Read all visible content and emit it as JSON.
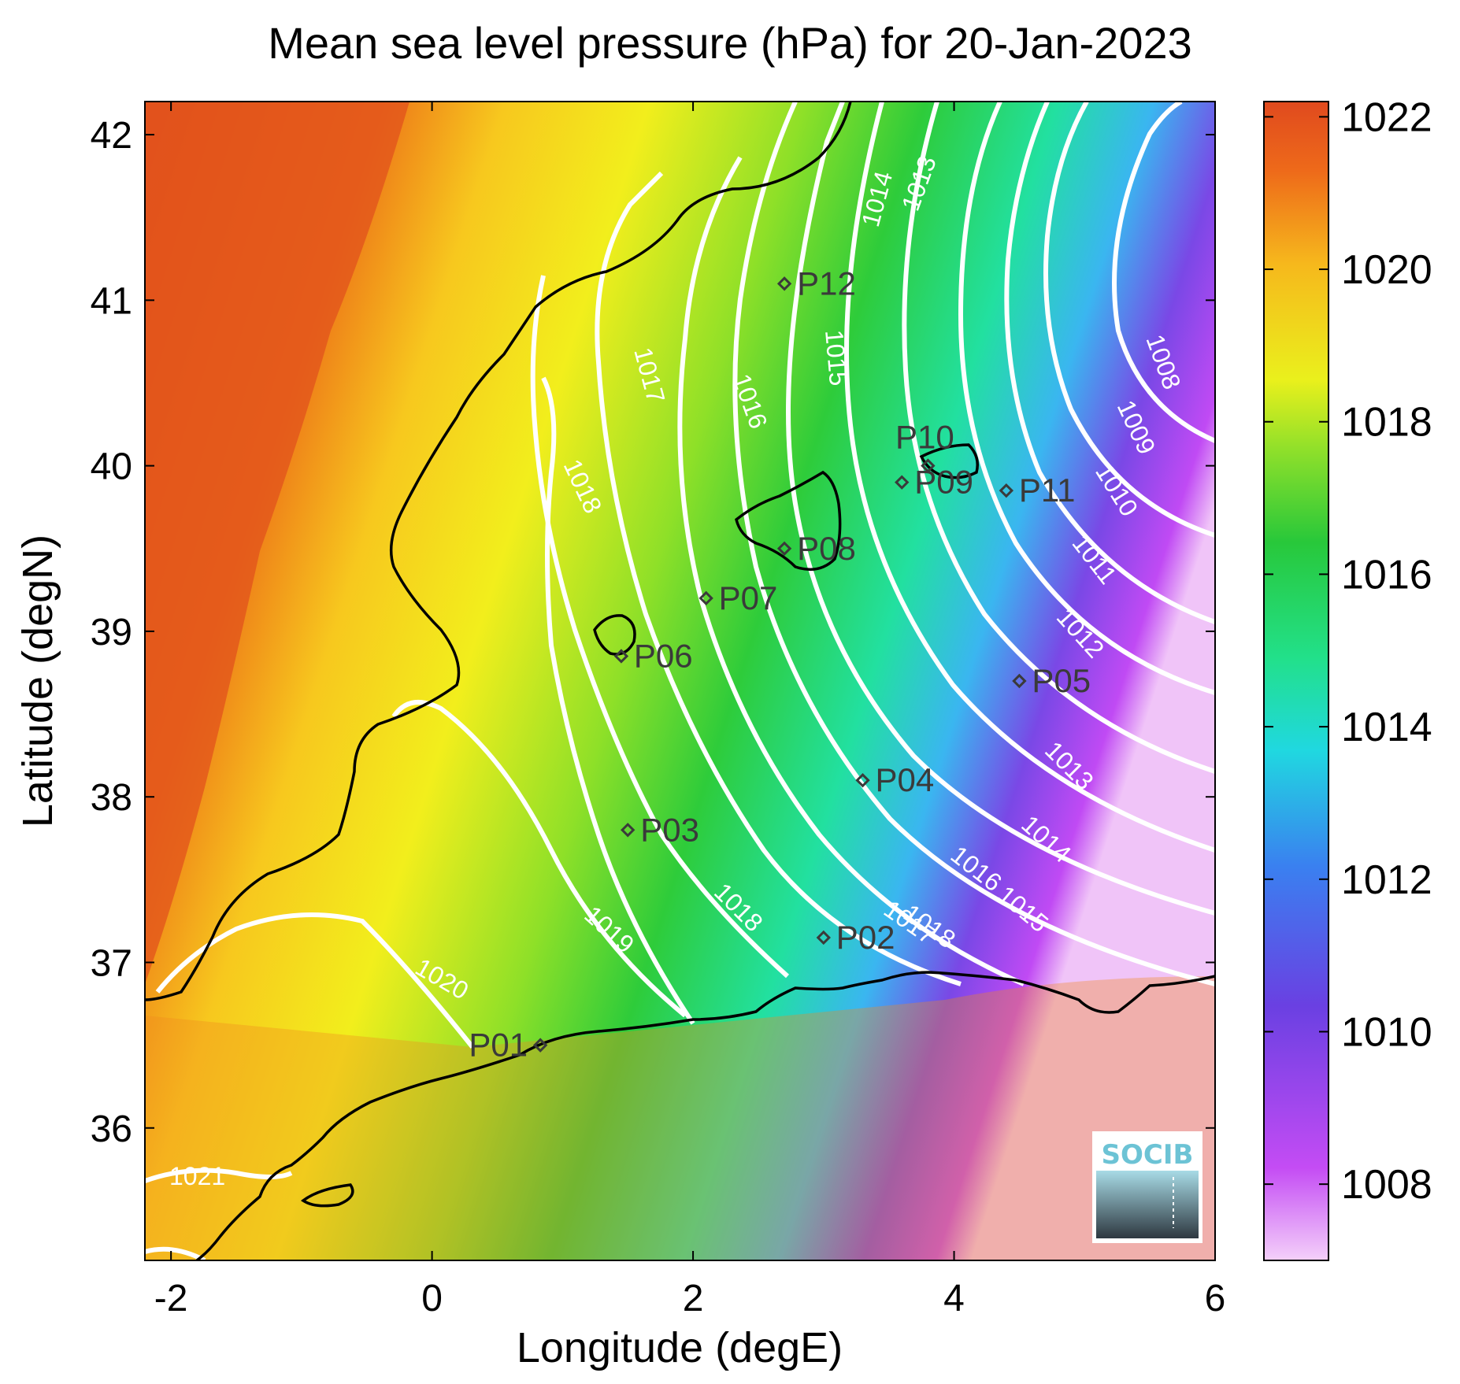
{
  "title": "Mean sea level pressure (hPa) for 20-Jan-2023",
  "axes": {
    "xlabel": "Longitude (degE)",
    "ylabel": "Latitude (degN)",
    "xlim": [
      -2.2,
      6
    ],
    "ylim": [
      35.2,
      42.2
    ],
    "xticks": [
      "-2",
      "0",
      "2",
      "4",
      "6"
    ],
    "yticks": [
      "36",
      "37",
      "38",
      "39",
      "40",
      "41",
      "42"
    ]
  },
  "colorbar": {
    "range": [
      1007,
      1022.2
    ],
    "ticks": [
      "1022",
      "1020",
      "1018",
      "1016",
      "1014",
      "1012",
      "1010",
      "1008"
    ]
  },
  "stations": [
    {
      "id": "P01",
      "lon": 0.83,
      "lat": 36.5
    },
    {
      "id": "P02",
      "lon": 3.0,
      "lat": 37.15
    },
    {
      "id": "P03",
      "lon": 1.5,
      "lat": 37.8
    },
    {
      "id": "P04",
      "lon": 3.3,
      "lat": 38.1
    },
    {
      "id": "P05",
      "lon": 4.5,
      "lat": 38.7
    },
    {
      "id": "P06",
      "lon": 1.45,
      "lat": 38.85
    },
    {
      "id": "P07",
      "lon": 2.1,
      "lat": 39.2
    },
    {
      "id": "P08",
      "lon": 2.7,
      "lat": 39.5
    },
    {
      "id": "P09",
      "lon": 3.6,
      "lat": 39.9
    },
    {
      "id": "P10",
      "lon": 3.8,
      "lat": 40.0
    },
    {
      "id": "P11",
      "lon": 4.4,
      "lat": 39.85
    },
    {
      "id": "P12",
      "lon": 2.7,
      "lat": 41.1
    }
  ],
  "contour_labels": [
    "1008",
    "1009",
    "1010",
    "1011",
    "1012",
    "1013",
    "1013",
    "1014",
    "1014",
    "1015",
    "1015",
    "1016",
    "1016",
    "1017",
    "1017",
    "1018",
    "1018",
    "1018",
    "1019",
    "1020",
    "1021"
  ],
  "logo": {
    "text": "SOCIB"
  },
  "colors": {
    "land_high": "#e0501e",
    "sea_low": "#1ec850",
    "contour": "#ffffff",
    "coast": "#000000"
  }
}
